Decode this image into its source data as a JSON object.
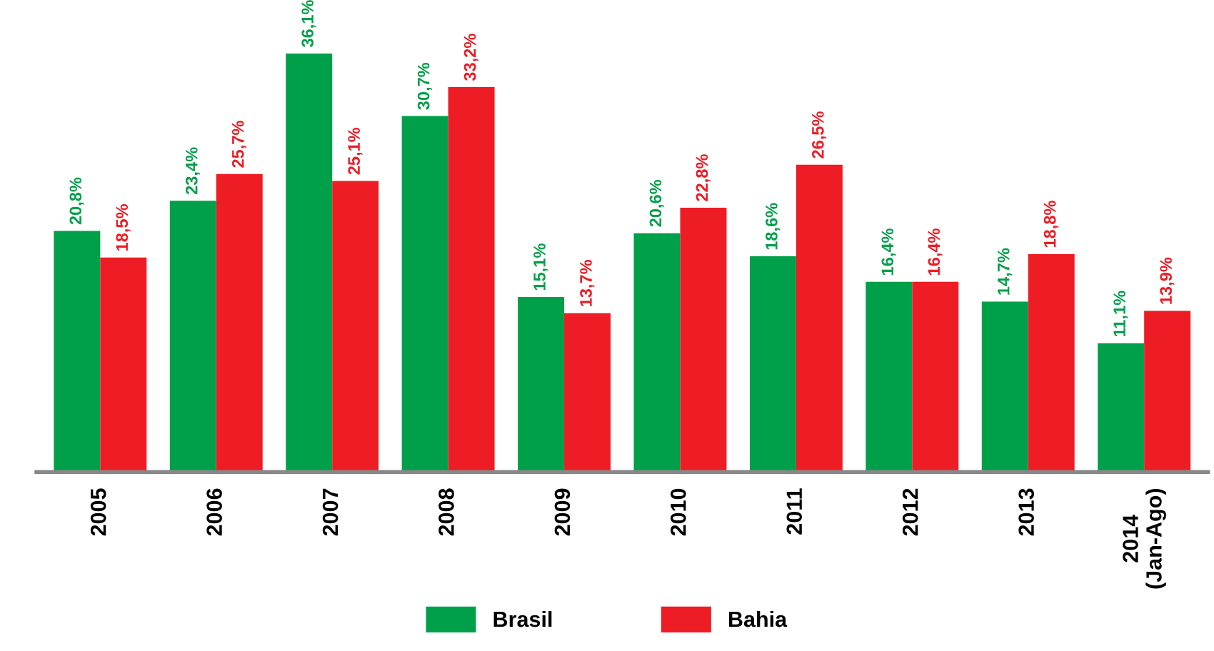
{
  "chart_data": {
    "type": "bar",
    "categories": [
      "2005",
      "2006",
      "2007",
      "2008",
      "2009",
      "2010",
      "2011",
      "2012",
      "2013",
      "2014\n(Jan-Ago)"
    ],
    "series": [
      {
        "name": "Brasil",
        "color": "#00a04a",
        "values": [
          20.8,
          23.4,
          36.1,
          30.7,
          15.1,
          20.6,
          18.6,
          16.4,
          14.7,
          11.1
        ],
        "value_labels": [
          "20,8%",
          "23,4%",
          "36,1%",
          "30,7%",
          "15,1%",
          "20,6%",
          "18,6%",
          "16,4%",
          "14,7%",
          "11,1%"
        ]
      },
      {
        "name": "Bahia",
        "color": "#ee1c25",
        "values": [
          18.5,
          25.7,
          25.1,
          33.2,
          13.7,
          22.8,
          26.5,
          16.4,
          18.8,
          13.9
        ],
        "value_labels": [
          "18,5%",
          "25,7%",
          "25,1%",
          "33,2%",
          "13,7%",
          "22,8%",
          "26,5%",
          "16,4%",
          "18,8%",
          "13,9%"
        ]
      }
    ],
    "legend": "bottom",
    "grid": false
  }
}
